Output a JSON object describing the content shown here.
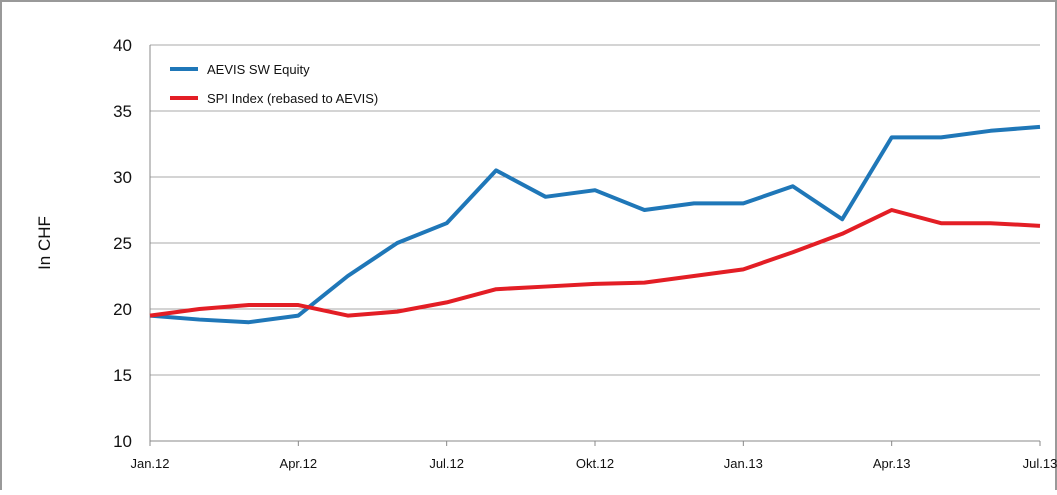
{
  "chart_data": {
    "type": "line",
    "y_label": "In CHF",
    "x": [
      "2012-01",
      "2012-02",
      "2012-03",
      "2012-04",
      "2012-05",
      "2012-06",
      "2012-07",
      "2012-08",
      "2012-09",
      "2012-10",
      "2012-11",
      "2012-12",
      "2013-01",
      "2013-02",
      "2013-03",
      "2013-04",
      "2013-05",
      "2013-06",
      "2013-07"
    ],
    "series": [
      {
        "name": "AEVIS SW Equity",
        "color": "#1f77b8",
        "values": [
          19.5,
          19.2,
          19,
          19.5,
          22.5,
          25,
          26.5,
          30.5,
          28.5,
          29,
          27.5,
          28,
          28,
          29.3,
          26.8,
          33,
          33,
          33.5,
          33.8
        ]
      },
      {
        "name": "SPI Index (rebased to AEVIS)",
        "color": "#e31e25",
        "values": [
          19.5,
          20,
          20.3,
          20.3,
          19.5,
          19.8,
          20.5,
          21.5,
          21.7,
          21.9,
          22,
          22.5,
          23,
          24.3,
          25.7,
          27.5,
          26.5,
          26.5,
          26.3
        ]
      }
    ],
    "xlim": [
      "2012-01",
      "2013-07"
    ],
    "xticks": [
      {
        "value": "2012-01",
        "label": "Jan.12"
      },
      {
        "value": "2012-04",
        "label": "Apr.12"
      },
      {
        "value": "2012-07",
        "label": "Jul.12"
      },
      {
        "value": "2012-10",
        "label": "Okt.12"
      },
      {
        "value": "2013-01",
        "label": "Jan.13"
      },
      {
        "value": "2013-04",
        "label": "Apr.13"
      },
      {
        "value": "2013-07",
        "label": "Jul.13"
      }
    ],
    "ylim": [
      10,
      40
    ],
    "yticks": [
      10,
      15,
      20,
      25,
      30,
      35,
      40
    ],
    "grid": true,
    "legend": "upper left"
  }
}
